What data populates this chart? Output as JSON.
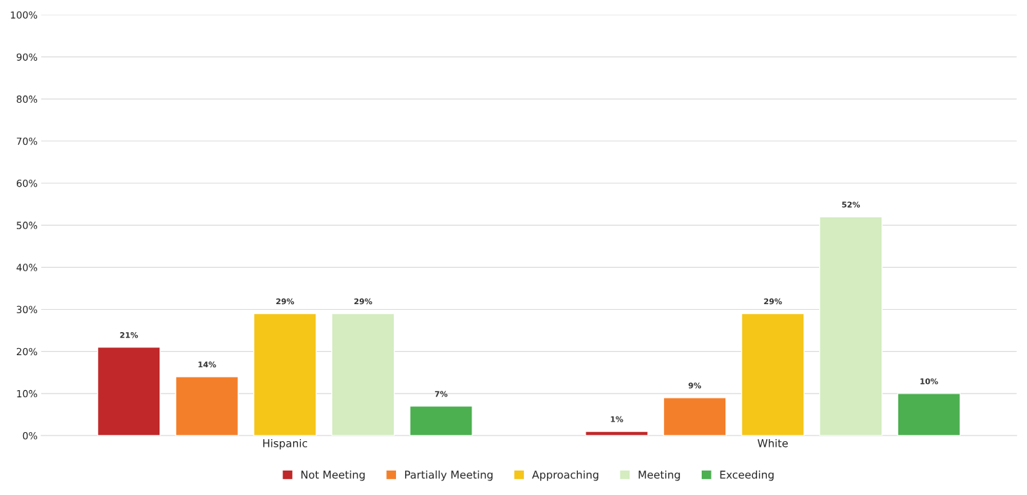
{
  "chart_data": {
    "type": "bar",
    "categories": [
      "Hispanic",
      "White"
    ],
    "series": [
      {
        "name": "Not Meeting",
        "color": "#c0282a",
        "values": [
          21,
          1
        ],
        "value_labels": [
          "21%",
          "1%"
        ]
      },
      {
        "name": "Partially Meeting",
        "color": "#f47f2a",
        "values": [
          14,
          9
        ],
        "value_labels": [
          "14%",
          "9%"
        ]
      },
      {
        "name": "Approaching",
        "color": "#f5c518",
        "values": [
          29,
          29
        ],
        "value_labels": [
          "29%",
          "29%"
        ]
      },
      {
        "name": "Meeting",
        "color": "#d4ecc0",
        "values": [
          29,
          52
        ],
        "value_labels": [
          "29%",
          "52%"
        ]
      },
      {
        "name": "Exceeding",
        "color": "#4caf50",
        "values": [
          7,
          10
        ],
        "value_labels": [
          "7%",
          "10%"
        ]
      }
    ],
    "ylim": [
      0,
      100
    ],
    "yticks": [
      {
        "value": 0,
        "label": "0%"
      },
      {
        "value": 10,
        "label": "10%"
      },
      {
        "value": 20,
        "label": "20%"
      },
      {
        "value": 30,
        "label": "30%"
      },
      {
        "value": 40,
        "label": "40%"
      },
      {
        "value": 50,
        "label": "50%"
      },
      {
        "value": 60,
        "label": "60%"
      },
      {
        "value": 70,
        "label": "70%"
      },
      {
        "value": 80,
        "label": "80%"
      },
      {
        "value": 90,
        "label": "90%"
      },
      {
        "value": 100,
        "label": "100%"
      }
    ],
    "grid": "y",
    "legend": "bottom"
  }
}
